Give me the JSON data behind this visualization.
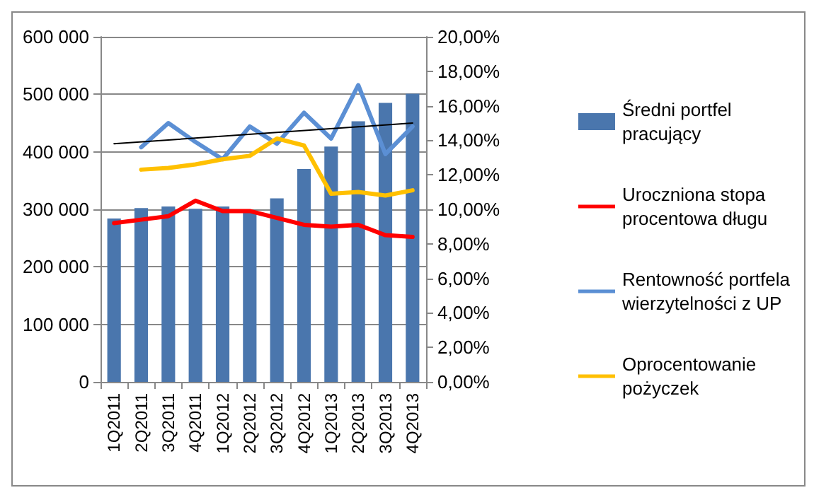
{
  "chart_data": {
    "type": "bar",
    "categories": [
      "1Q2011",
      "2Q2011",
      "3Q2011",
      "4Q2011",
      "1Q2012",
      "2Q2012",
      "3Q2012",
      "4Q2012",
      "1Q2013",
      "2Q2013",
      "3Q2013",
      "4Q2013"
    ],
    "series": [
      {
        "name": "Średni portfel\npracujący",
        "color": "#4a76ad",
        "values": [
          284000,
          302000,
          305000,
          301000,
          305000,
          298000,
          319000,
          370000,
          409000,
          453000,
          485000,
          501000
        ]
      },
      {
        "name": "Uroczniona stopa\nprocentowa długu",
        "type": "line",
        "axis": "y2",
        "color": "#ff0000",
        "values": [
          9.2,
          9.4,
          9.6,
          10.5,
          9.9,
          9.9,
          9.5,
          9.1,
          9.0,
          9.1,
          8.5,
          8.4
        ]
      },
      {
        "name": "Rentowność portfela\nwierzytelności z UP",
        "type": "line",
        "axis": "y2",
        "color": "#5b8fd4",
        "values": [
          null,
          13.6,
          15.0,
          13.9,
          12.9,
          14.8,
          13.8,
          15.6,
          14.1,
          17.2,
          13.2,
          14.8
        ]
      },
      {
        "name": "Oprocentowanie\npożyczek",
        "type": "line",
        "axis": "y2",
        "color": "#ffc000",
        "values": [
          null,
          12.3,
          12.4,
          12.6,
          12.9,
          13.1,
          14.1,
          13.7,
          10.9,
          11.0,
          10.8,
          11.1
        ]
      },
      {
        "type": "line",
        "axis": "y2",
        "color": "#000000",
        "x": [
          "1Q2011",
          "4Q2013"
        ],
        "values": [
          13.8,
          15.0
        ]
      }
    ],
    "ylim": [
      0,
      600000
    ],
    "yticks": [
      {
        "value": 0,
        "label": "0"
      },
      {
        "value": 100000,
        "label": "100 000"
      },
      {
        "value": 200000,
        "label": "200 000"
      },
      {
        "value": 300000,
        "label": "300 000"
      },
      {
        "value": 400000,
        "label": "400 000"
      },
      {
        "value": 500000,
        "label": "500 000"
      },
      {
        "value": 600000,
        "label": "600 000"
      }
    ],
    "y2lim": [
      0,
      20
    ],
    "y2ticks": [
      {
        "value": 0,
        "label": "0,00%"
      },
      {
        "value": 2,
        "label": "2,00%"
      },
      {
        "value": 4,
        "label": "4,00%"
      },
      {
        "value": 6,
        "label": "6,00%"
      },
      {
        "value": 8,
        "label": "8,00%"
      },
      {
        "value": 10,
        "label": "10,00%"
      },
      {
        "value": 12,
        "label": "12,00%"
      },
      {
        "value": 14,
        "label": "14,00%"
      },
      {
        "value": 16,
        "label": "16,00%"
      },
      {
        "value": 18,
        "label": "18,00%"
      },
      {
        "value": 20,
        "label": "20,00%"
      }
    ],
    "grid": "y",
    "legend": "right",
    "marker": "none"
  }
}
